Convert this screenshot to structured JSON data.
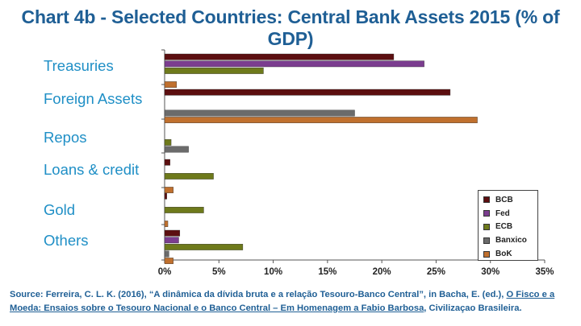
{
  "title": "Chart 4b - Selected Countries: Central Bank Assets 2015 (% of GDP)",
  "colors": {
    "BCB": "#5c0f10",
    "Fed": "#7b3d8f",
    "ECB": "#6e7a1b",
    "Banxico": "#6b6b6b",
    "BoK": "#c0702e"
  },
  "chart_data": {
    "type": "bar",
    "orientation": "horizontal",
    "categories": [
      "Treasuries",
      "Foreign Assets",
      "Repos",
      "Loans & credit",
      "Gold",
      "Others"
    ],
    "series": [
      {
        "name": "BCB",
        "values": [
          21.1,
          26.3,
          0.0,
          0.5,
          0.2,
          1.4
        ]
      },
      {
        "name": "Fed",
        "values": [
          23.9,
          0.0,
          0.0,
          0.0,
          0.0,
          1.3
        ]
      },
      {
        "name": "ECB",
        "values": [
          9.1,
          0.0,
          0.6,
          4.5,
          3.6,
          7.2
        ]
      },
      {
        "name": "Banxico",
        "values": [
          0.0,
          17.5,
          2.2,
          0.0,
          0.0,
          0.4
        ]
      },
      {
        "name": "BoK",
        "values": [
          1.1,
          28.8,
          0.0,
          0.8,
          0.3,
          0.8
        ]
      }
    ],
    "x_ticks": [
      "0%",
      "5%",
      "10%",
      "15%",
      "20%",
      "25%",
      "30%",
      "35%"
    ],
    "xlim": [
      0,
      35
    ],
    "grid": false,
    "legend_position": "bottom-right"
  },
  "source": {
    "prefix": "Source: Ferreira, C. L. K. (2016), “A dinâmica da dívida bruta e a relação Tesouro-Banco Central”, in Bacha, E. (ed.), ",
    "link": "O Fisco e a Moeda: Ensaios sobre o Tesouro Nacional e o Banco Central – Em Homenagem a Fabio Barbosa",
    "suffix": ", Civilizaçao Brasileira."
  }
}
